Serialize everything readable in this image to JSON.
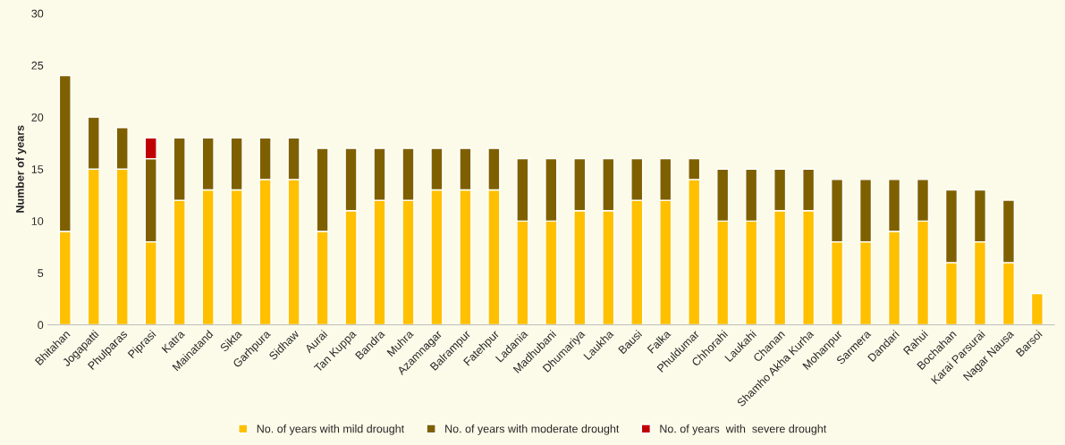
{
  "chart_data": {
    "type": "bar",
    "stacked": true,
    "ylabel": "Number of years",
    "categories": [
      "Bhitahan",
      "Jogapatti",
      "Phulparas",
      "Piprasi",
      "Katra",
      "Mainatand",
      "Sikta",
      "Garhpura",
      "Sidhaw",
      "Aurai",
      "Tan Kuppa",
      "Bandra",
      "Muhra",
      "Azamnagar",
      "Balrampur",
      "Fatehpur",
      "Ladania",
      "Madhubani",
      "Dhumariya",
      "Laukha",
      "Bausi",
      "Falka",
      "Phuldumar",
      "Chhorahi",
      "Laukahi",
      "Chanan",
      "Shamho Akha Kurha",
      "Mohanpur",
      "Sarmera",
      "Dandari",
      "Rahui",
      "Bochahan",
      "Karai Parsurai",
      "Nagar Nausa",
      "Barsoi"
    ],
    "series": [
      {
        "name": "No. of years with mild drought",
        "color": "#ffc000",
        "values": [
          9,
          15,
          15,
          8,
          12,
          13,
          13,
          14,
          14,
          9,
          11,
          12,
          12,
          13,
          13,
          13,
          10,
          10,
          11,
          11,
          12,
          12,
          14,
          10,
          10,
          11,
          11,
          8,
          8,
          9,
          10,
          6,
          8,
          6,
          3
        ]
      },
      {
        "name": "No. of years with moderate drought",
        "color": "#7f6000",
        "values": [
          15,
          5,
          4,
          8,
          6,
          5,
          5,
          4,
          4,
          8,
          6,
          5,
          5,
          4,
          4,
          4,
          6,
          6,
          5,
          5,
          4,
          4,
          2,
          5,
          5,
          4,
          4,
          6,
          6,
          5,
          4,
          7,
          5,
          6,
          null
        ]
      },
      {
        "name": "No. of years  with  severe drought",
        "color": "#c00000",
        "values": [
          null,
          null,
          null,
          2,
          null,
          null,
          null,
          null,
          null,
          null,
          null,
          null,
          null,
          null,
          null,
          null,
          null,
          null,
          null,
          null,
          null,
          null,
          null,
          null,
          null,
          null,
          null,
          null,
          null,
          null,
          null,
          null,
          null,
          null,
          null
        ]
      }
    ],
    "ylim": [
      0,
      30
    ],
    "yticks": [
      0,
      5,
      10,
      15,
      20,
      25,
      30
    ],
    "grid": false,
    "legend": "bottom"
  }
}
